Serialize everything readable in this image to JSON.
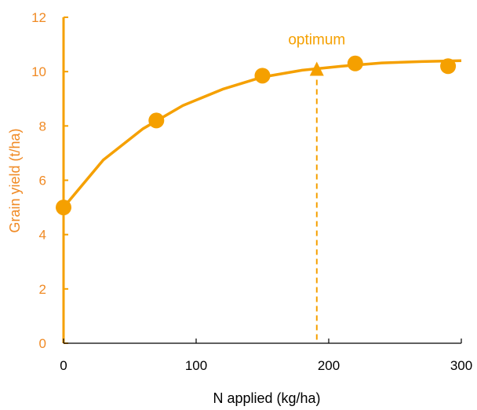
{
  "colors": {
    "accent": "#F5A000",
    "ylabel_text": "#F08A24",
    "axis_black": "#000000"
  },
  "chart_data": {
    "type": "scatter",
    "title": "",
    "xlabel": "N applied (kg/ha)",
    "ylabel": "Grain yield (t/ha)",
    "xlim": [
      0,
      300
    ],
    "ylim": [
      0,
      12
    ],
    "x_ticks": [
      0,
      100,
      200,
      300
    ],
    "y_ticks": [
      0,
      2,
      4,
      6,
      8,
      10,
      12
    ],
    "grid": false,
    "series": [
      {
        "marker": "circle",
        "points": [
          {
            "x": 0,
            "y": 5.0
          },
          {
            "x": 70,
            "y": 8.2
          },
          {
            "x": 150,
            "y": 9.85
          },
          {
            "x": 220,
            "y": 10.3
          },
          {
            "x": 290,
            "y": 10.2
          }
        ]
      }
    ],
    "fitted_curve": {
      "x": [
        0,
        30,
        60,
        90,
        120,
        150,
        180,
        210,
        240,
        270,
        300
      ],
      "y": [
        5.0,
        6.75,
        7.9,
        8.75,
        9.35,
        9.8,
        10.05,
        10.2,
        10.32,
        10.37,
        10.4
      ]
    },
    "optimum": {
      "label": "optimum",
      "x": 191,
      "y": 10.05,
      "marker": "triangle",
      "line": "dashed vertical"
    }
  }
}
